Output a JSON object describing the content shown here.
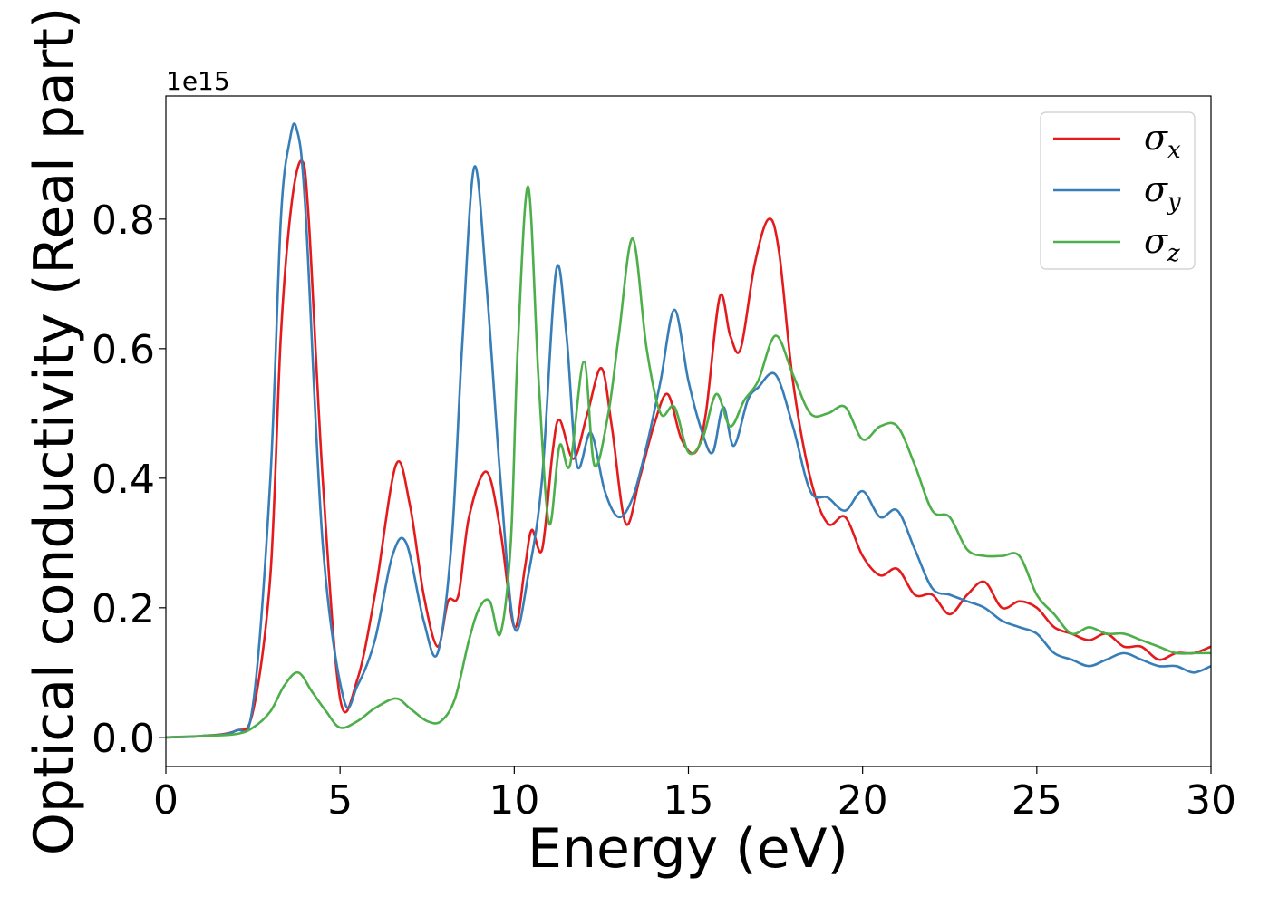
{
  "chart_data": {
    "type": "line",
    "xlabel": "Energy (eV)",
    "ylabel": "Optical conductivity (Real part)",
    "y_offset_label": "1e15",
    "xlim": [
      0,
      30
    ],
    "ylim": [
      -0.045,
      0.99
    ],
    "x_ticks": [
      0,
      5,
      10,
      15,
      20,
      25,
      30
    ],
    "x_tick_labels": [
      "0",
      "5",
      "10",
      "15",
      "20",
      "25",
      "30"
    ],
    "y_ticks": [
      0.0,
      0.2,
      0.4,
      0.6,
      0.8
    ],
    "y_tick_labels": [
      "0.0",
      "0.2",
      "0.4",
      "0.6",
      "0.8"
    ],
    "grid": false,
    "legend_position": "top-right",
    "series": [
      {
        "name": "σx",
        "legend_symbol": "σ",
        "legend_subscript": "x",
        "color": "#e41a1c",
        "x": [
          0,
          1,
          2,
          2.5,
          3.0,
          3.3,
          3.6,
          3.9,
          4.1,
          4.5,
          5.0,
          5.5,
          6.0,
          6.6,
          7.0,
          7.4,
          7.8,
          8.1,
          8.4,
          8.7,
          9.2,
          9.6,
          10.0,
          10.3,
          10.5,
          10.8,
          11.1,
          11.3,
          11.7,
          12.1,
          12.5,
          12.8,
          13.2,
          13.6,
          14.0,
          14.4,
          14.8,
          15.2,
          15.5,
          15.9,
          16.2,
          16.5,
          16.9,
          17.3,
          17.6,
          18.0,
          18.5,
          19.0,
          19.5,
          20.0,
          20.5,
          21.0,
          21.5,
          22.0,
          22.5,
          23.0,
          23.5,
          24.0,
          24.5,
          25.0,
          25.5,
          26.0,
          26.5,
          27.0,
          27.5,
          28.0,
          28.5,
          29.0,
          29.5,
          30.0
        ],
        "values": [
          0.0,
          0.002,
          0.01,
          0.04,
          0.25,
          0.62,
          0.82,
          0.89,
          0.8,
          0.4,
          0.06,
          0.09,
          0.22,
          0.42,
          0.36,
          0.22,
          0.14,
          0.21,
          0.22,
          0.34,
          0.41,
          0.32,
          0.17,
          0.26,
          0.32,
          0.29,
          0.44,
          0.49,
          0.43,
          0.5,
          0.57,
          0.48,
          0.33,
          0.4,
          0.48,
          0.53,
          0.46,
          0.44,
          0.5,
          0.68,
          0.62,
          0.6,
          0.73,
          0.8,
          0.75,
          0.55,
          0.4,
          0.33,
          0.34,
          0.28,
          0.25,
          0.26,
          0.22,
          0.22,
          0.19,
          0.22,
          0.24,
          0.2,
          0.21,
          0.2,
          0.17,
          0.16,
          0.15,
          0.16,
          0.14,
          0.14,
          0.12,
          0.13,
          0.13,
          0.14
        ]
      },
      {
        "name": "σy",
        "legend_symbol": "σ",
        "legend_subscript": "y",
        "color": "#377eb8",
        "x": [
          0,
          1,
          2,
          2.5,
          3.0,
          3.3,
          3.55,
          3.75,
          4.0,
          4.5,
          5.1,
          5.5,
          6.0,
          6.5,
          6.9,
          7.4,
          7.8,
          8.2,
          8.5,
          8.85,
          9.2,
          9.6,
          10.0,
          10.4,
          10.8,
          11.2,
          11.5,
          11.8,
          12.2,
          12.6,
          13.0,
          13.4,
          13.8,
          14.2,
          14.6,
          15.0,
          15.4,
          15.7,
          16.0,
          16.3,
          16.7,
          17.0,
          17.5,
          18.0,
          18.5,
          19.0,
          19.5,
          20.0,
          20.5,
          21.0,
          21.5,
          22.0,
          22.5,
          23.0,
          23.5,
          24.0,
          24.5,
          25.0,
          25.5,
          26.0,
          26.5,
          27.0,
          27.5,
          28.0,
          28.5,
          29.0,
          29.5,
          30.0
        ],
        "values": [
          0.0,
          0.002,
          0.01,
          0.05,
          0.4,
          0.8,
          0.92,
          0.94,
          0.82,
          0.3,
          0.06,
          0.08,
          0.15,
          0.28,
          0.3,
          0.18,
          0.13,
          0.3,
          0.6,
          0.88,
          0.7,
          0.4,
          0.17,
          0.25,
          0.4,
          0.72,
          0.62,
          0.42,
          0.47,
          0.38,
          0.34,
          0.37,
          0.45,
          0.55,
          0.66,
          0.55,
          0.47,
          0.44,
          0.51,
          0.45,
          0.52,
          0.54,
          0.56,
          0.48,
          0.38,
          0.37,
          0.35,
          0.38,
          0.34,
          0.35,
          0.29,
          0.23,
          0.22,
          0.21,
          0.2,
          0.18,
          0.17,
          0.16,
          0.13,
          0.12,
          0.11,
          0.12,
          0.13,
          0.12,
          0.11,
          0.11,
          0.1,
          0.11
        ]
      },
      {
        "name": "σz",
        "legend_symbol": "σ",
        "legend_subscript": "z",
        "color": "#4daf4a",
        "x": [
          0,
          1,
          2,
          2.5,
          3.0,
          3.4,
          3.8,
          4.2,
          4.6,
          5.0,
          5.5,
          6.0,
          6.6,
          7.0,
          7.5,
          7.9,
          8.3,
          8.7,
          9.0,
          9.3,
          9.6,
          9.9,
          10.1,
          10.4,
          10.7,
          11.0,
          11.3,
          11.6,
          12.0,
          12.3,
          12.7,
          13.0,
          13.4,
          13.8,
          14.2,
          14.6,
          15.0,
          15.4,
          15.8,
          16.2,
          16.6,
          17.0,
          17.5,
          18.0,
          18.5,
          19.0,
          19.5,
          20.0,
          20.5,
          21.0,
          21.5,
          22.0,
          22.5,
          23.0,
          23.5,
          24.0,
          24.5,
          25.0,
          25.5,
          26.0,
          26.5,
          27.0,
          27.5,
          28.0,
          28.5,
          29.0,
          29.5,
          30.0
        ],
        "values": [
          0.0,
          0.002,
          0.005,
          0.015,
          0.04,
          0.08,
          0.1,
          0.07,
          0.04,
          0.015,
          0.025,
          0.045,
          0.06,
          0.045,
          0.025,
          0.025,
          0.06,
          0.15,
          0.2,
          0.21,
          0.16,
          0.3,
          0.6,
          0.85,
          0.55,
          0.33,
          0.45,
          0.42,
          0.58,
          0.42,
          0.5,
          0.62,
          0.77,
          0.6,
          0.5,
          0.51,
          0.44,
          0.46,
          0.53,
          0.48,
          0.52,
          0.55,
          0.62,
          0.56,
          0.5,
          0.5,
          0.51,
          0.46,
          0.48,
          0.48,
          0.42,
          0.35,
          0.34,
          0.29,
          0.28,
          0.28,
          0.28,
          0.22,
          0.19,
          0.16,
          0.17,
          0.16,
          0.16,
          0.15,
          0.14,
          0.13,
          0.13,
          0.13
        ]
      }
    ]
  }
}
